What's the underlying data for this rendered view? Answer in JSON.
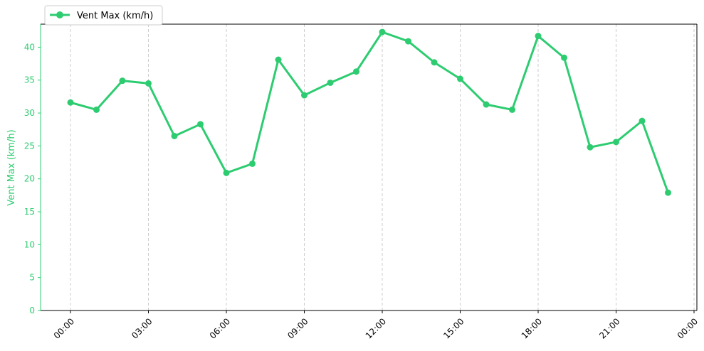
{
  "chart_data": {
    "type": "line",
    "title": "",
    "xlabel": "",
    "ylabel": "Vent Max (km/h)",
    "x": [
      "00:00",
      "01:00",
      "02:00",
      "03:00",
      "04:00",
      "05:00",
      "06:00",
      "07:00",
      "08:00",
      "09:00",
      "10:00",
      "11:00",
      "12:00",
      "13:00",
      "14:00",
      "15:00",
      "16:00",
      "17:00",
      "18:00",
      "19:00",
      "20:00",
      "21:00",
      "22:00",
      "23:00"
    ],
    "series": [
      {
        "name": "Vent Max (km/h)",
        "color": "#2ecc71",
        "values": [
          31.6,
          30.5,
          34.9,
          34.5,
          26.5,
          28.3,
          20.9,
          22.3,
          38.1,
          32.7,
          34.6,
          36.3,
          42.3,
          40.9,
          37.7,
          35.2,
          31.3,
          30.5,
          41.7,
          38.4,
          24.8,
          25.6,
          28.8,
          17.9
        ]
      }
    ],
    "x_ticks": [
      "00:00",
      "03:00",
      "06:00",
      "09:00",
      "12:00",
      "15:00",
      "18:00",
      "21:00",
      "00:00"
    ],
    "y_ticks": [
      "0",
      "5",
      "10",
      "15",
      "20",
      "25",
      "30",
      "35",
      "40"
    ],
    "ylim": [
      0,
      43.5
    ],
    "grid": "vertical-dashed",
    "legend": "top-left",
    "accent_color": "#2ecc71"
  }
}
